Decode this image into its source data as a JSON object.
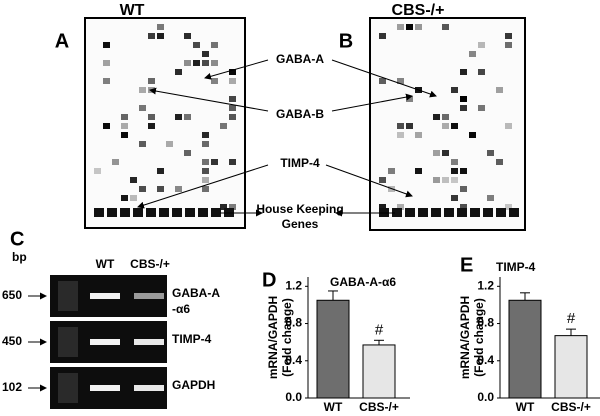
{
  "panel_a": {
    "label": "A",
    "title": "WT"
  },
  "panel_b": {
    "label": "B",
    "title": "CBS-/+"
  },
  "array_labels": [
    {
      "lines": [
        "GABA-A"
      ]
    },
    {
      "lines": [
        "GABA-B"
      ]
    },
    {
      "lines": [
        "TIMP-4"
      ]
    },
    {
      "lines": [
        "House Keeping",
        "Genes"
      ]
    }
  ],
  "panel_c": {
    "label": "C",
    "unit": "bp",
    "columns": [
      "WT",
      "CBS-/+"
    ],
    "sizes": [
      "650",
      "450",
      "102"
    ],
    "genes": [
      {
        "lines": [
          "GABA-A",
          "-α6"
        ]
      },
      {
        "lines": [
          "TIMP-4"
        ]
      },
      {
        "lines": [
          "GAPDH"
        ]
      }
    ]
  },
  "chart_data": [
    {
      "type": "bar",
      "panel": "D",
      "title": "GABA-A-α6",
      "y_label_lines": [
        "mRNA/GAPDH",
        "(Fold change)"
      ],
      "categories": [
        "WT",
        "CBS-/+"
      ],
      "values": [
        1.05,
        0.57
      ],
      "errors": [
        0.1,
        0.05
      ],
      "annotations": [
        null,
        "#"
      ],
      "colors": [
        "#6e6e6e",
        "#e6e6e6"
      ],
      "ylim": [
        0,
        1.3
      ],
      "yticks": [
        {
          "value": 0,
          "label": "0.0"
        },
        0.4,
        0.8,
        1.2
      ]
    },
    {
      "type": "bar",
      "panel": "E",
      "title": "TIMP-4",
      "y_label_lines": [
        "mRNA/GAPDH",
        "(Fold change)"
      ],
      "categories": [
        "WT",
        "CBS-/+"
      ],
      "values": [
        1.05,
        0.67
      ],
      "errors": [
        0.08,
        0.07
      ],
      "annotations": [
        null,
        "#"
      ],
      "colors": [
        "#6e6e6e",
        "#e6e6e6"
      ],
      "ylim": [
        0,
        1.3
      ],
      "yticks": [
        {
          "value": 0,
          "label": "0.0"
        },
        0.4,
        0.8,
        1.2
      ]
    }
  ]
}
